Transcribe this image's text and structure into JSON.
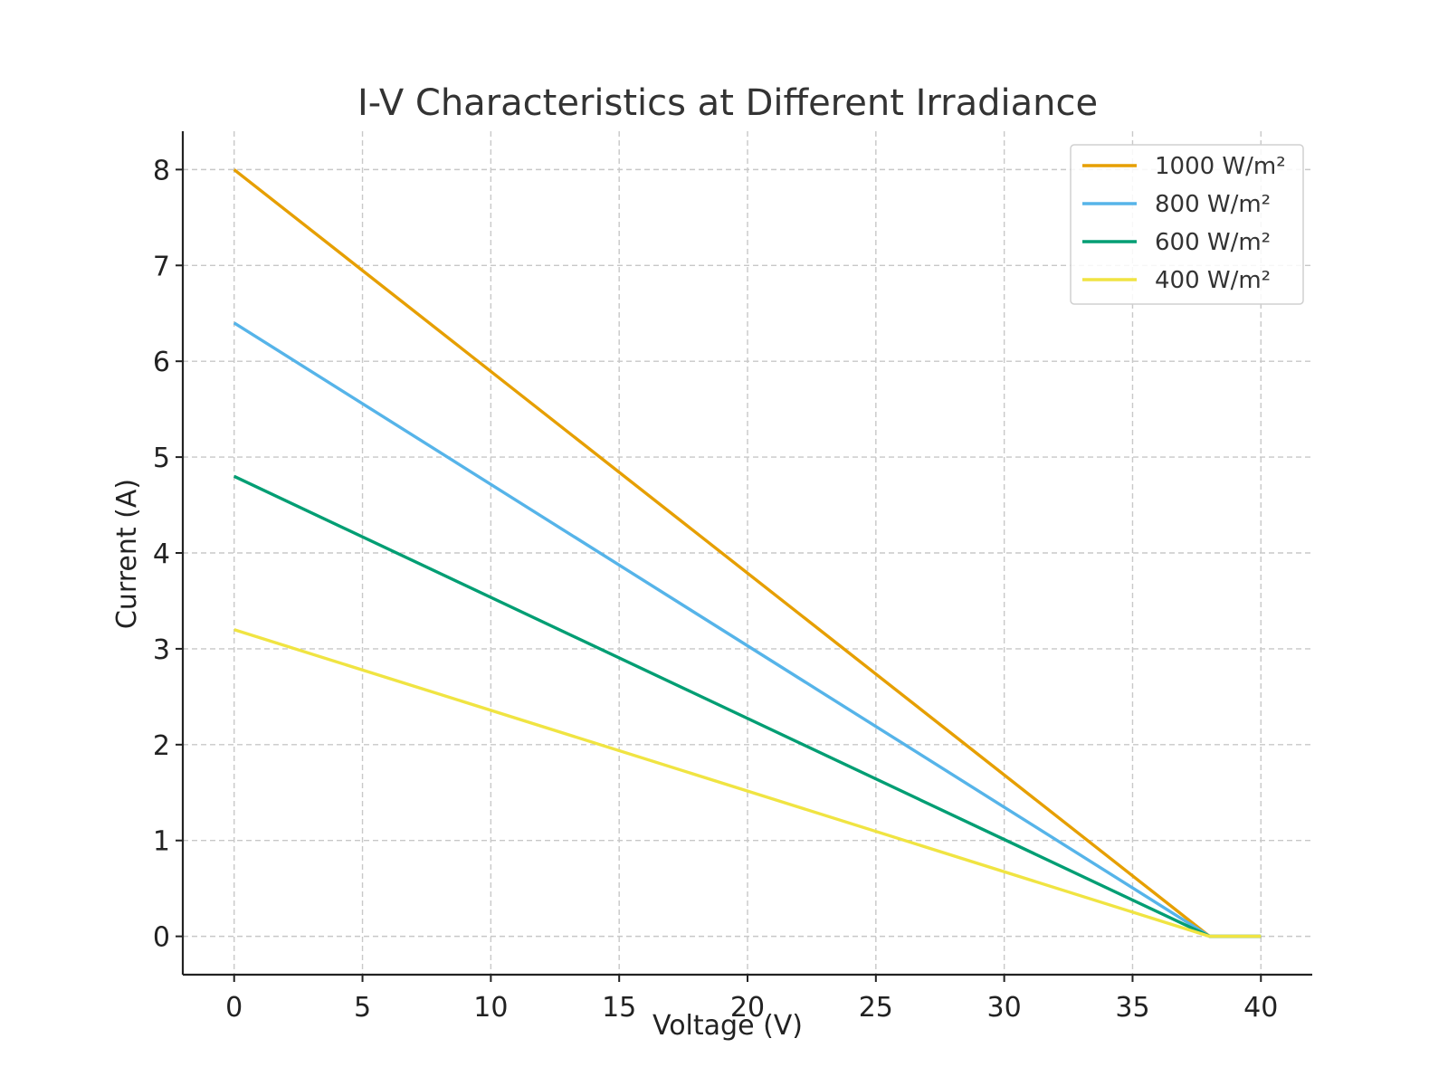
{
  "chart_data": {
    "type": "line",
    "title": "I-V Characteristics at Different Irradiance",
    "xlabel": "Voltage (V)",
    "ylabel": "Current (A)",
    "xlim": [
      -2,
      42
    ],
    "ylim": [
      -0.4,
      8.4
    ],
    "xticks": [
      0,
      5,
      10,
      15,
      20,
      25,
      30,
      35,
      40
    ],
    "yticks": [
      0,
      1,
      2,
      3,
      4,
      5,
      6,
      7,
      8
    ],
    "grid": true,
    "legend_position": "top-right",
    "series": [
      {
        "name": "1000 W/m²",
        "color": "#E69F00",
        "points": [
          [
            0,
            8.0
          ],
          [
            38,
            0
          ],
          [
            40,
            0
          ]
        ]
      },
      {
        "name": "800 W/m²",
        "color": "#56B4E9",
        "points": [
          [
            0,
            6.4
          ],
          [
            38,
            0
          ],
          [
            40,
            0
          ]
        ]
      },
      {
        "name": "600 W/m²",
        "color": "#009E73",
        "points": [
          [
            0,
            4.8
          ],
          [
            38,
            0
          ],
          [
            40,
            0
          ]
        ]
      },
      {
        "name": "400 W/m²",
        "color": "#F0E442",
        "points": [
          [
            0,
            3.2
          ],
          [
            38,
            0
          ],
          [
            40,
            0
          ]
        ]
      }
    ]
  }
}
